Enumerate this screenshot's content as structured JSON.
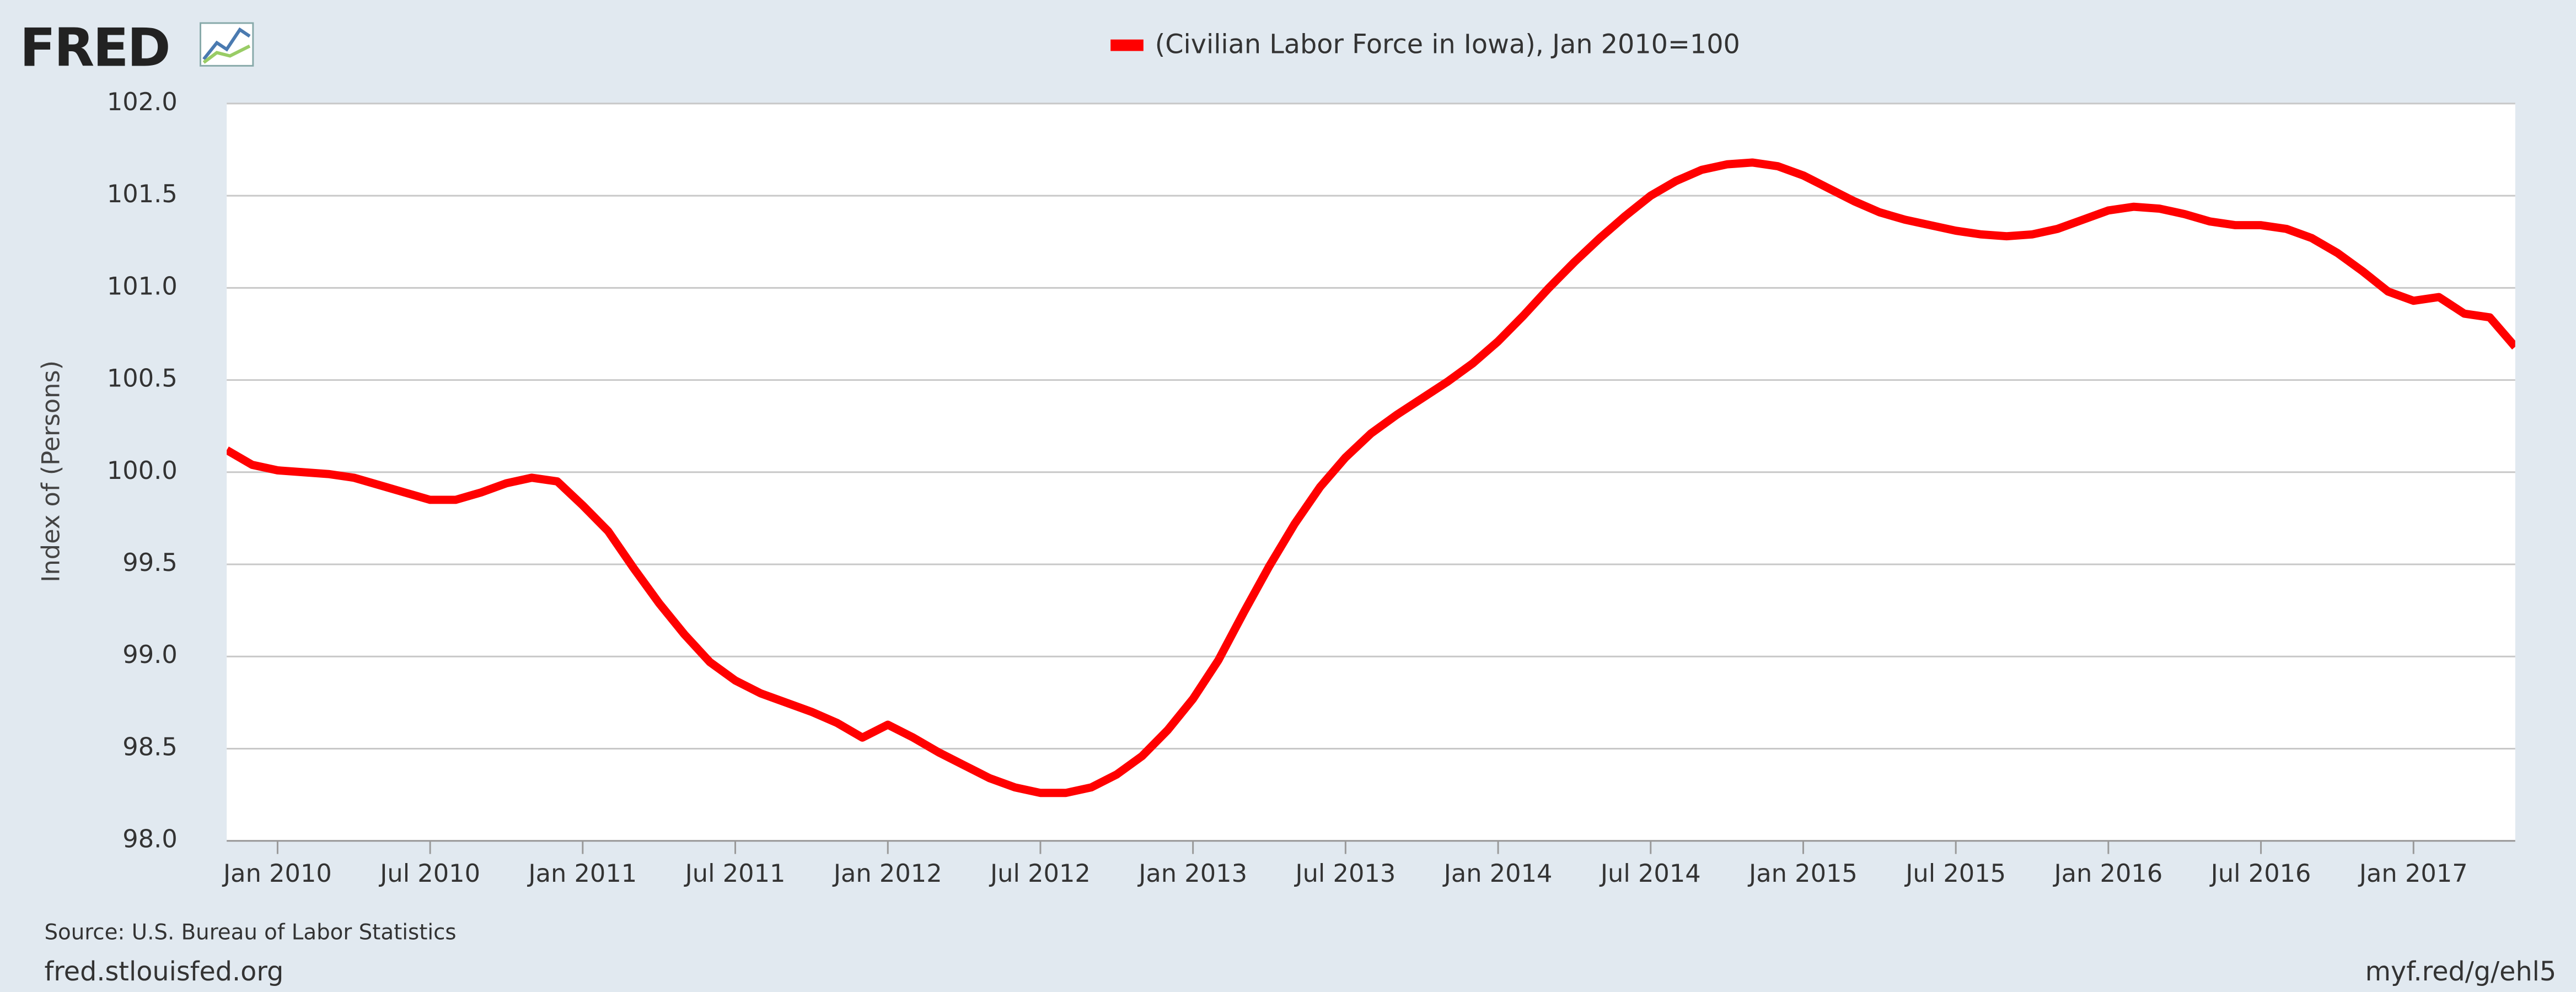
{
  "header": {
    "logo": "FRED"
  },
  "chart_data": {
    "type": "line",
    "legend": "(Civilian Labor Force in Iowa), Jan 2010=100",
    "y_label": "Index of (Persons)",
    "x": [
      "2009-11",
      "2009-12",
      "2010-01",
      "2010-02",
      "2010-03",
      "2010-04",
      "2010-05",
      "2010-06",
      "2010-07",
      "2010-08",
      "2010-09",
      "2010-10",
      "2010-11",
      "2010-12",
      "2011-01",
      "2011-02",
      "2011-03",
      "2011-04",
      "2011-05",
      "2011-06",
      "2011-07",
      "2011-08",
      "2011-09",
      "2011-10",
      "2011-11",
      "2011-12",
      "2012-01",
      "2012-02",
      "2012-03",
      "2012-04",
      "2012-05",
      "2012-06",
      "2012-07",
      "2012-08",
      "2012-09",
      "2012-10",
      "2012-11",
      "2012-12",
      "2013-01",
      "2013-02",
      "2013-03",
      "2013-04",
      "2013-05",
      "2013-06",
      "2013-07",
      "2013-08",
      "2013-09",
      "2013-10",
      "2013-11",
      "2013-12",
      "2014-01",
      "2014-02",
      "2014-03",
      "2014-04",
      "2014-05",
      "2014-06",
      "2014-07",
      "2014-08",
      "2014-09",
      "2014-10",
      "2014-11",
      "2014-12",
      "2015-01",
      "2015-02",
      "2015-03",
      "2015-04",
      "2015-05",
      "2015-06",
      "2015-07",
      "2015-08",
      "2015-09",
      "2015-10",
      "2015-11",
      "2015-12",
      "2016-01",
      "2016-02",
      "2016-03",
      "2016-04",
      "2016-05",
      "2016-06",
      "2016-07",
      "2016-08",
      "2016-09",
      "2016-10",
      "2016-11",
      "2016-12",
      "2017-01",
      "2017-02",
      "2017-03",
      "2017-04",
      "2017-05"
    ],
    "series": [
      {
        "name": "(Civilian Labor Force in Iowa), Jan 2010=100",
        "color": "#ff0000",
        "values": [
          100.12,
          100.04,
          100.01,
          100.0,
          99.99,
          99.97,
          99.93,
          99.89,
          99.85,
          99.85,
          99.89,
          99.94,
          99.97,
          99.95,
          99.82,
          99.68,
          99.48,
          99.29,
          99.12,
          98.97,
          98.87,
          98.8,
          98.75,
          98.7,
          98.64,
          98.56,
          98.63,
          98.56,
          98.48,
          98.41,
          98.34,
          98.29,
          98.26,
          98.26,
          98.29,
          98.36,
          98.46,
          98.6,
          98.77,
          98.98,
          99.24,
          99.49,
          99.72,
          99.92,
          100.08,
          100.21,
          100.31,
          100.4,
          100.49,
          100.59,
          100.71,
          100.85,
          101.0,
          101.14,
          101.27,
          101.39,
          101.5,
          101.58,
          101.64,
          101.67,
          101.68,
          101.66,
          101.61,
          101.54,
          101.47,
          101.41,
          101.37,
          101.34,
          101.31,
          101.29,
          101.28,
          101.29,
          101.32,
          101.37,
          101.42,
          101.44,
          101.43,
          101.4,
          101.36,
          101.34,
          101.34,
          101.32,
          101.27,
          101.19,
          101.09,
          100.98,
          100.93,
          100.95,
          100.86,
          100.84,
          100.68
        ]
      }
    ],
    "xlim": [
      "2009-11",
      "2017-05"
    ],
    "xticks": [
      {
        "value": "2010-01",
        "label": "Jan 2010"
      },
      {
        "value": "2010-07",
        "label": "Jul 2010"
      },
      {
        "value": "2011-01",
        "label": "Jan 2011"
      },
      {
        "value": "2011-07",
        "label": "Jul 2011"
      },
      {
        "value": "2012-01",
        "label": "Jan 2012"
      },
      {
        "value": "2012-07",
        "label": "Jul 2012"
      },
      {
        "value": "2013-01",
        "label": "Jan 2013"
      },
      {
        "value": "2013-07",
        "label": "Jul 2013"
      },
      {
        "value": "2014-01",
        "label": "Jan 2014"
      },
      {
        "value": "2014-07",
        "label": "Jul 2014"
      },
      {
        "value": "2015-01",
        "label": "Jan 2015"
      },
      {
        "value": "2015-07",
        "label": "Jul 2015"
      },
      {
        "value": "2016-01",
        "label": "Jan 2016"
      },
      {
        "value": "2016-07",
        "label": "Jul 2016"
      },
      {
        "value": "2017-01",
        "label": "Jan 2017"
      }
    ],
    "ylim": [
      98,
      102
    ],
    "yticks": [
      {
        "value": 98,
        "label": "98.0"
      },
      {
        "value": 98.5,
        "label": "98.5"
      },
      {
        "value": 99,
        "label": "99.0"
      },
      {
        "value": 99.5,
        "label": "99.5"
      },
      {
        "value": 100,
        "label": "100.0"
      },
      {
        "value": 100.5,
        "label": "100.5"
      },
      {
        "value": 101,
        "label": "101.0"
      },
      {
        "value": 101.5,
        "label": "101.5"
      },
      {
        "value": 102,
        "label": "102.0"
      }
    ],
    "grid": true
  },
  "footer": {
    "source": "Source: U.S. Bureau of Labor Statistics",
    "site": "fred.stlouisfed.org",
    "short_link": "myf.red/g/ehl5"
  }
}
